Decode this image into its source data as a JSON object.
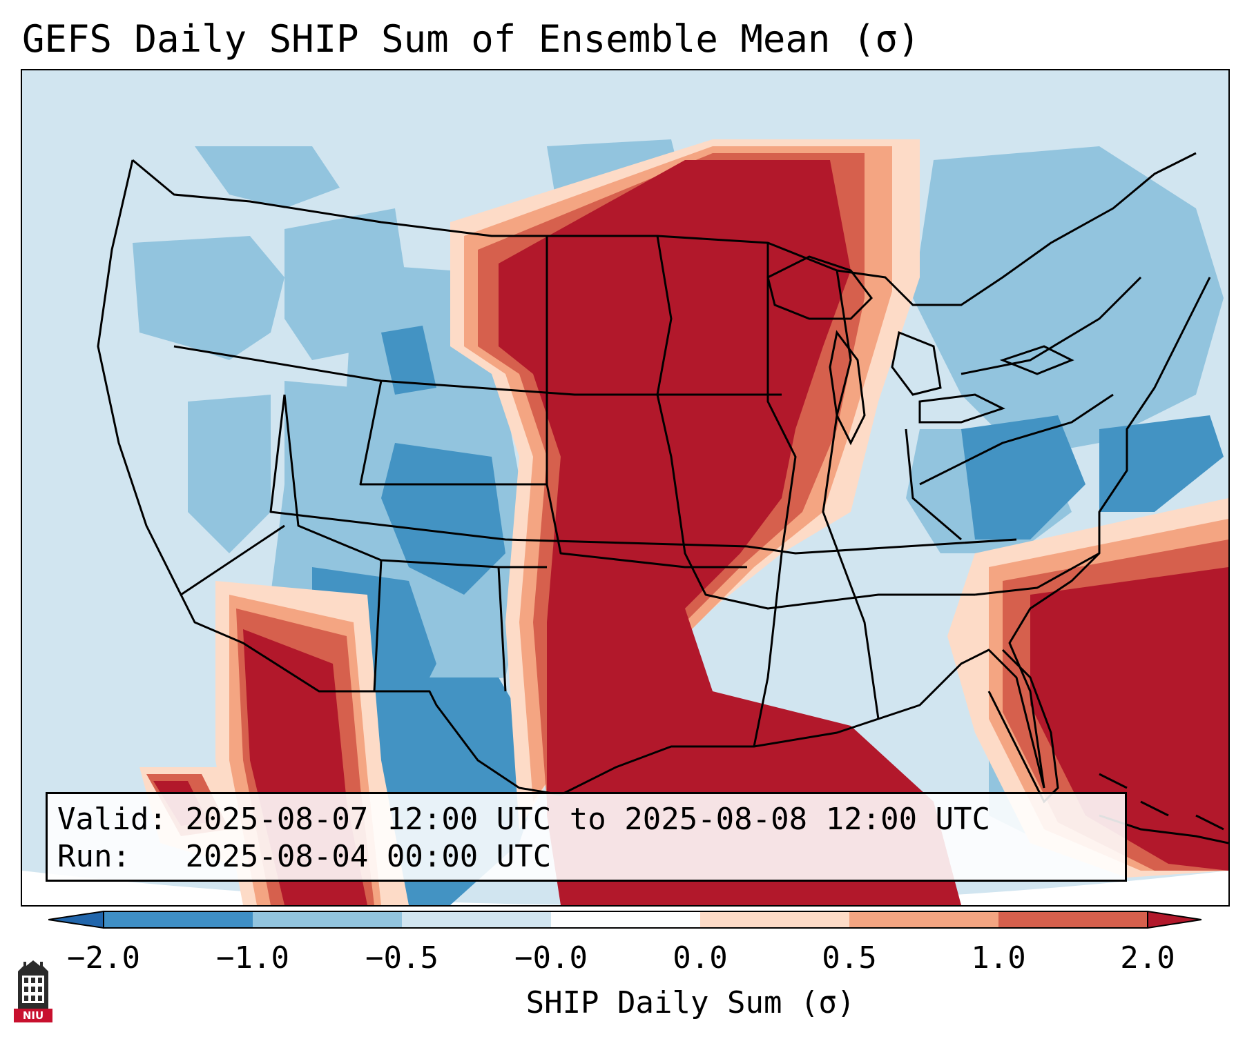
{
  "title": "GEFS Daily SHIP Sum of Ensemble Mean (σ)",
  "info": {
    "valid_label": "Valid:",
    "valid_value": "2025-08-07 12:00 UTC to 2025-08-08 12:00 UTC",
    "run_label": "Run:",
    "run_value": "2025-08-04 00:00 UTC"
  },
  "colorbar": {
    "label": "SHIP Daily Sum (σ)",
    "ticks": [
      "−2.0",
      "−1.0",
      "−0.5",
      "−0.0",
      "0.0",
      "0.5",
      "1.0",
      "2.0"
    ],
    "colors": [
      "#3f8fc5",
      "#92c4de",
      "#d1e5f0",
      "#fdfefe",
      "#fddbc7",
      "#f4a582",
      "#d6604d",
      "#b2182b"
    ],
    "extend": "both"
  },
  "map_regions": [
    {
      "name": "Northern/Central Plains & Upper Midwest",
      "category": "≥ 2.0"
    },
    {
      "name": "Gulf of Mexico & Texas",
      "category": "≥ 2.0"
    },
    {
      "name": "Western Atlantic",
      "category": "≥ 2.0"
    },
    {
      "name": "Mexico Pacific coast",
      "category": "≥ 2.0"
    },
    {
      "name": "Southwest & New Mexico",
      "category": "−2.0 to −1.0"
    },
    {
      "name": "Mid-Atlantic & Northeast",
      "category": "−1.0 to −0.5"
    },
    {
      "name": "Pacific Northwest & Great Basin",
      "category": "−0.5 to −0.0"
    }
  ],
  "logo": {
    "text": "NIU"
  }
}
